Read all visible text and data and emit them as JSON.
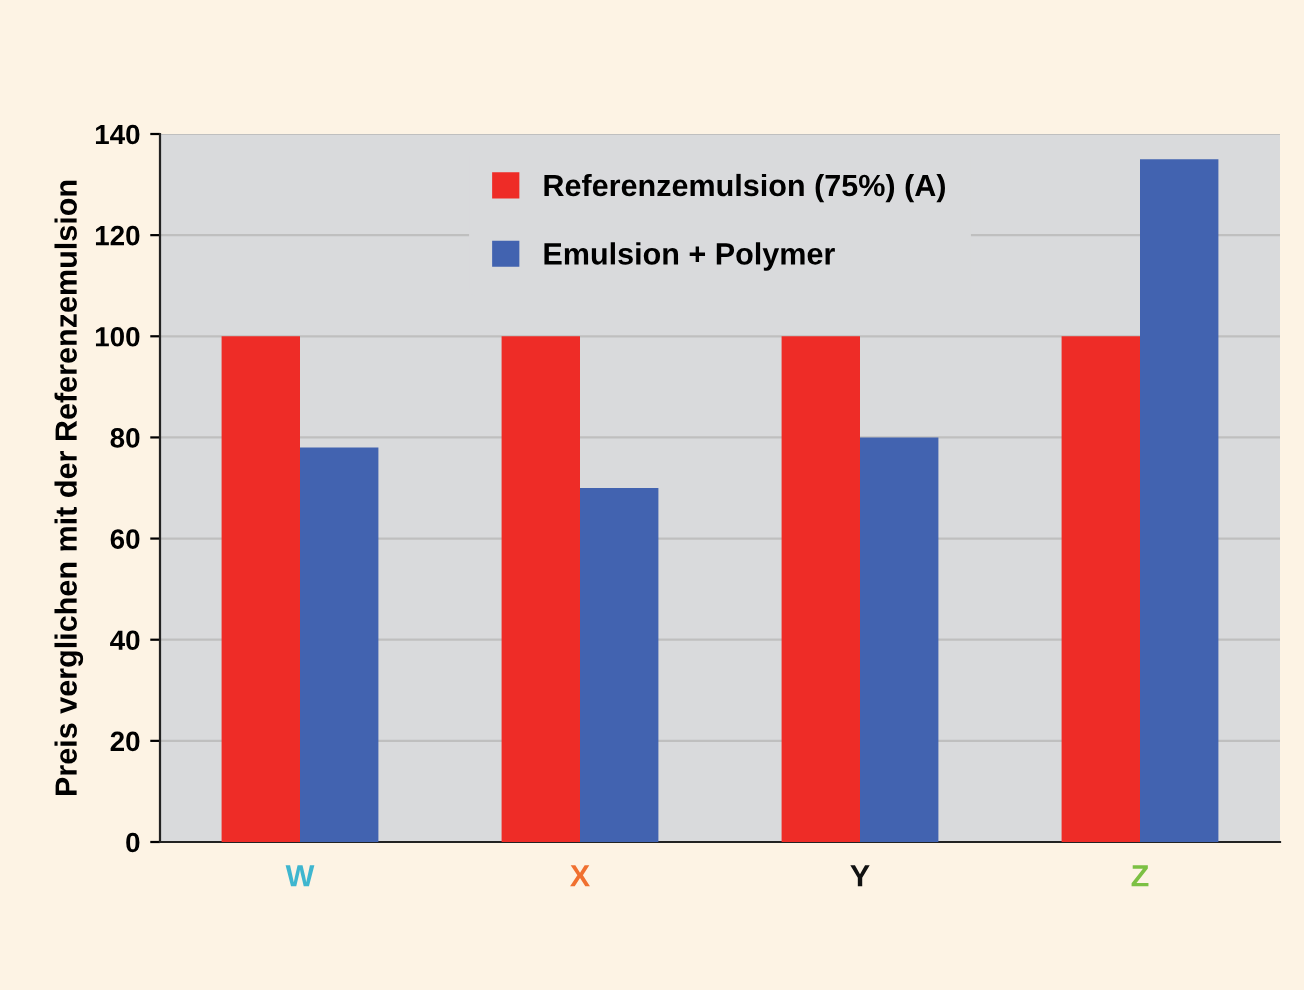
{
  "chart_data": {
    "type": "bar",
    "ylabel": "Preis verglichen mit der Referenzemulsion",
    "categories": [
      "W",
      "X",
      "Y",
      "Z"
    ],
    "series": [
      {
        "name": "Referenzemulsion (75%) (A)",
        "color": "#ee2c27",
        "values": [
          100,
          100,
          100,
          100
        ]
      },
      {
        "name": "Emulsion + Polymer",
        "color": "#4263b0",
        "values": [
          78,
          70,
          80,
          135
        ]
      }
    ],
    "ylim": [
      0,
      140
    ],
    "yticks": [
      0,
      20,
      40,
      60,
      80,
      100,
      120,
      140
    ],
    "grid": "y",
    "legend": "top"
  }
}
